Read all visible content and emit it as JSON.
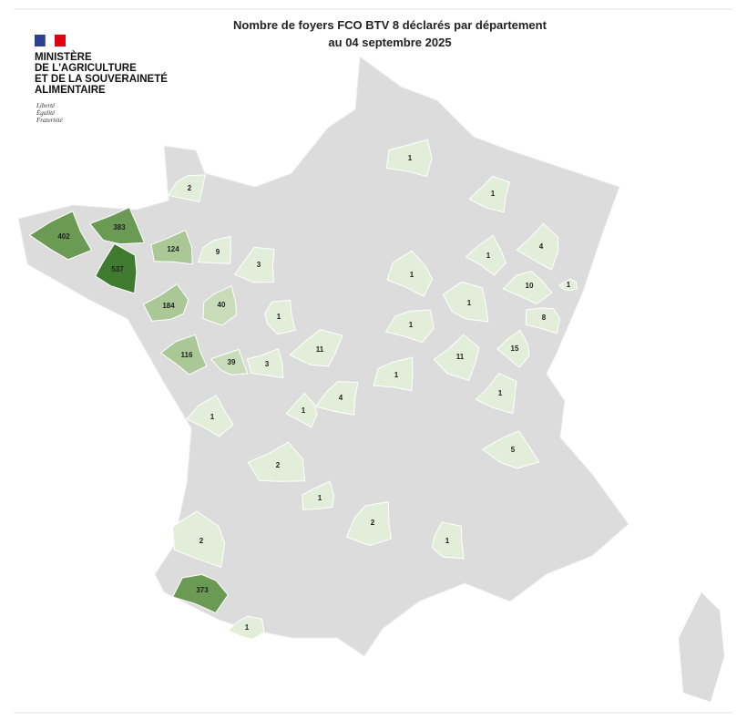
{
  "header": {
    "title_lines": [
      "Nombre de foyers FCO BTV 8 déclarés par département",
      "au 04 septembre 2025"
    ]
  },
  "logo": {
    "ministry_lines": [
      "MINISTÈRE",
      "DE L'AGRICULTURE",
      "ET DE LA SOUVERAINETÉ",
      "ALIMENTAIRE"
    ],
    "motto_lines": [
      "Liberté",
      "Égalité",
      "Fraternité"
    ]
  },
  "departments": [
    {
      "value": 1
    },
    {
      "value": 2
    },
    {
      "value": 1
    },
    {
      "value": 4
    },
    {
      "value": 1
    },
    {
      "value": 402
    },
    {
      "value": 383
    },
    {
      "value": 124
    },
    {
      "value": 9
    },
    {
      "value": 3
    },
    {
      "value": 537
    },
    {
      "value": 1
    },
    {
      "value": 10
    },
    {
      "value": 1
    },
    {
      "value": 184
    },
    {
      "value": 40
    },
    {
      "value": 1
    },
    {
      "value": 1
    },
    {
      "value": 8
    },
    {
      "value": 1
    },
    {
      "value": 11
    },
    {
      "value": 11
    },
    {
      "value": 15
    },
    {
      "value": 116
    },
    {
      "value": 39
    },
    {
      "value": 3
    },
    {
      "value": 1
    },
    {
      "value": 4
    },
    {
      "value": 1
    },
    {
      "value": 1
    },
    {
      "value": 1
    },
    {
      "value": 5
    },
    {
      "value": 2
    },
    {
      "value": 1
    },
    {
      "value": 2
    },
    {
      "value": 1
    },
    {
      "value": 2
    },
    {
      "value": 373
    },
    {
      "value": 1
    }
  ]
}
